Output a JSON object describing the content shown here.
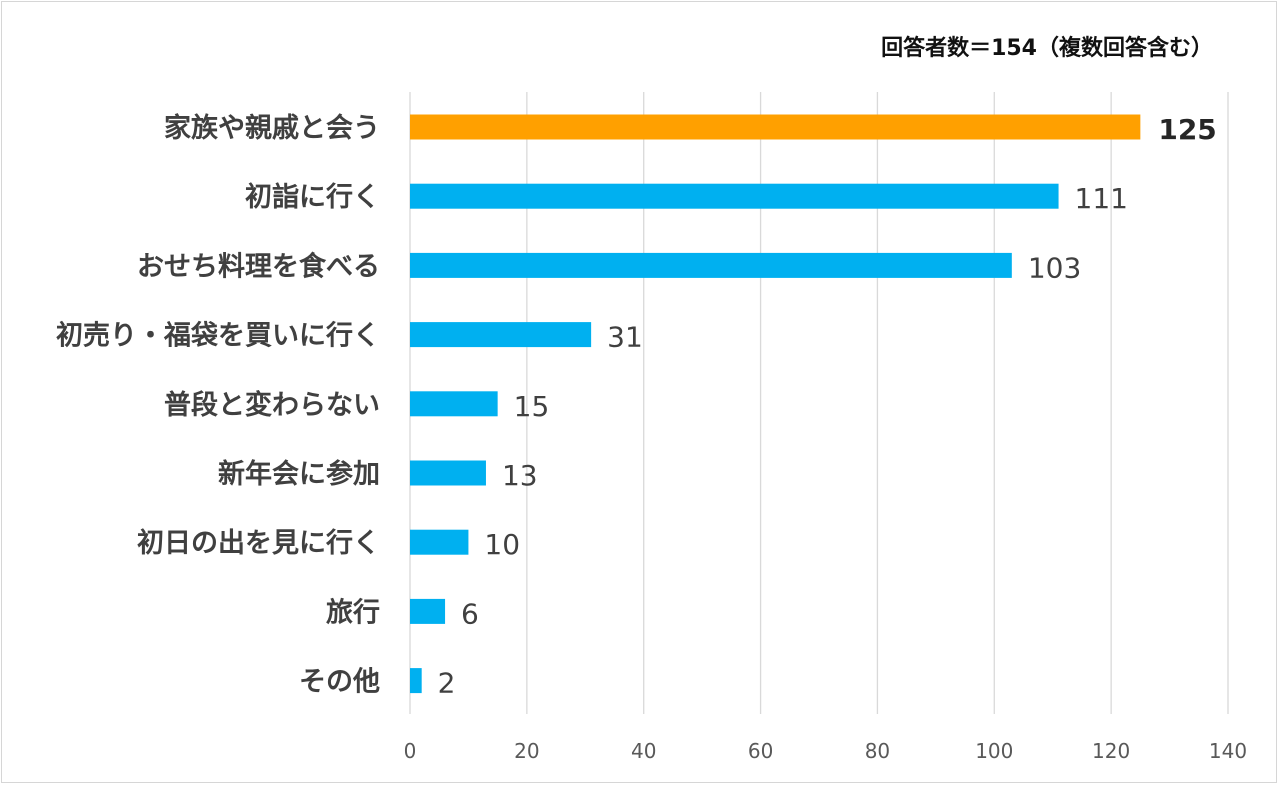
{
  "chart_data": {
    "type": "bar",
    "orientation": "horizontal",
    "note": "回答者数＝154（複数回答含む）",
    "categories": [
      "家族や親戚と会う",
      "初詣に行く",
      "おせち料理を食べる",
      "初売り・福袋を買いに行く",
      "普段と変わらない",
      "新年会に参加",
      "初日の出を見に行く",
      "旅行",
      "その他"
    ],
    "values": [
      125,
      111,
      103,
      31,
      15,
      13,
      10,
      6,
      2
    ],
    "highlight_index": 0,
    "xlim": [
      0,
      140
    ],
    "xticks": [
      0,
      20,
      40,
      60,
      80,
      100,
      120,
      140
    ],
    "grid": true,
    "xlabel": "",
    "ylabel": ""
  },
  "colors": {
    "bar": "#00b0f0",
    "highlight": "#ffa000",
    "grid": "#d9d9d9"
  }
}
